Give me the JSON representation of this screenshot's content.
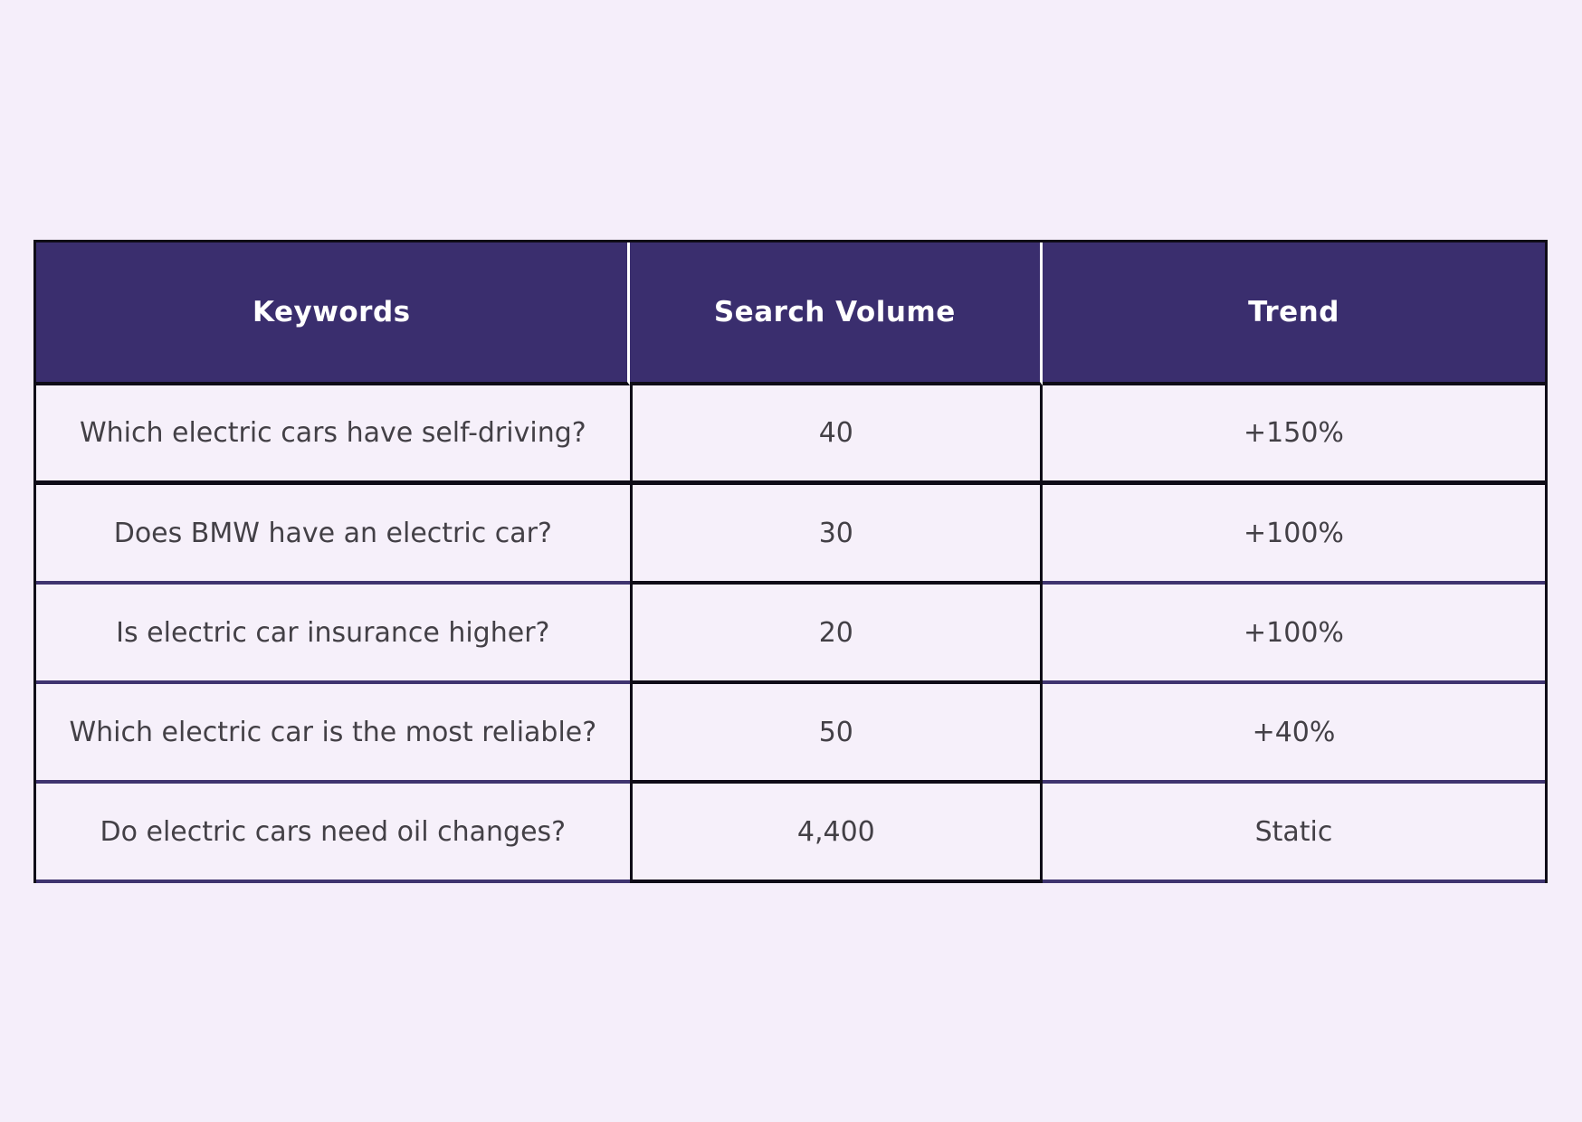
{
  "page": {
    "background": "#f5eefa"
  },
  "chart_data": {
    "type": "table",
    "title": "",
    "columns": [
      "Keywords",
      "Search Volume",
      "Trend"
    ],
    "rows": [
      [
        "Which electric cars have self-driving?",
        40,
        "+150%"
      ],
      [
        "Does BMW have an electric car?",
        30,
        "+100%"
      ],
      [
        "Is electric car insurance higher?",
        20,
        "+100%"
      ],
      [
        "Which electric car is the most reliable?",
        50,
        "+40%"
      ],
      [
        "Do electric cars need oil changes?",
        4400,
        "Static"
      ]
    ]
  },
  "table": {
    "columns": [
      {
        "label": "Keywords"
      },
      {
        "label": "Search Volume"
      },
      {
        "label": "Trend"
      }
    ],
    "rows": [
      {
        "keyword": "Which electric cars have self-driving?",
        "search_volume": "40",
        "trend": "+150%"
      },
      {
        "keyword": "Does BMW have an electric car?",
        "search_volume": "30",
        "trend": "+100%"
      },
      {
        "keyword": "Is electric car insurance higher?",
        "search_volume": "20",
        "trend": "+100%"
      },
      {
        "keyword": "Which electric car is the most reliable?",
        "search_volume": "50",
        "trend": "+40%"
      },
      {
        "keyword": "Do electric cars need oil changes?",
        "search_volume": "4,400",
        "trend": "Static"
      }
    ],
    "colors": {
      "page_bg": "#f5eefa",
      "cell_bg": "#f6f0fa",
      "header_bg": "#3a2e6e",
      "header_text": "#ffffff",
      "body_text": "#434046",
      "border_dark": "#0f0c17",
      "border_purple": "#3f346f",
      "divider_white": "#ffffff"
    }
  }
}
